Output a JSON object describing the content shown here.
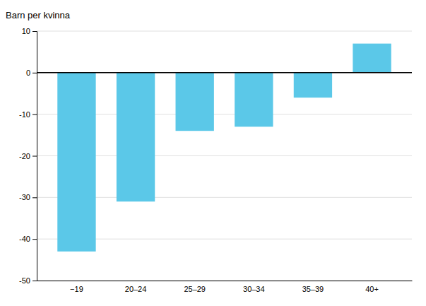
{
  "chart_data": {
    "type": "bar",
    "ylabel": "Barn per kvinna",
    "categories": [
      "−19",
      "20–24",
      "25–29",
      "30–34",
      "35–39",
      "40+"
    ],
    "values": [
      -43,
      -31,
      -14,
      -13,
      -6,
      7
    ],
    "color": "#5bc8e8",
    "ylim": [
      -50,
      10
    ],
    "yticks": [
      -50,
      -40,
      -30,
      -20,
      -10,
      0,
      10
    ],
    "grid": true
  }
}
